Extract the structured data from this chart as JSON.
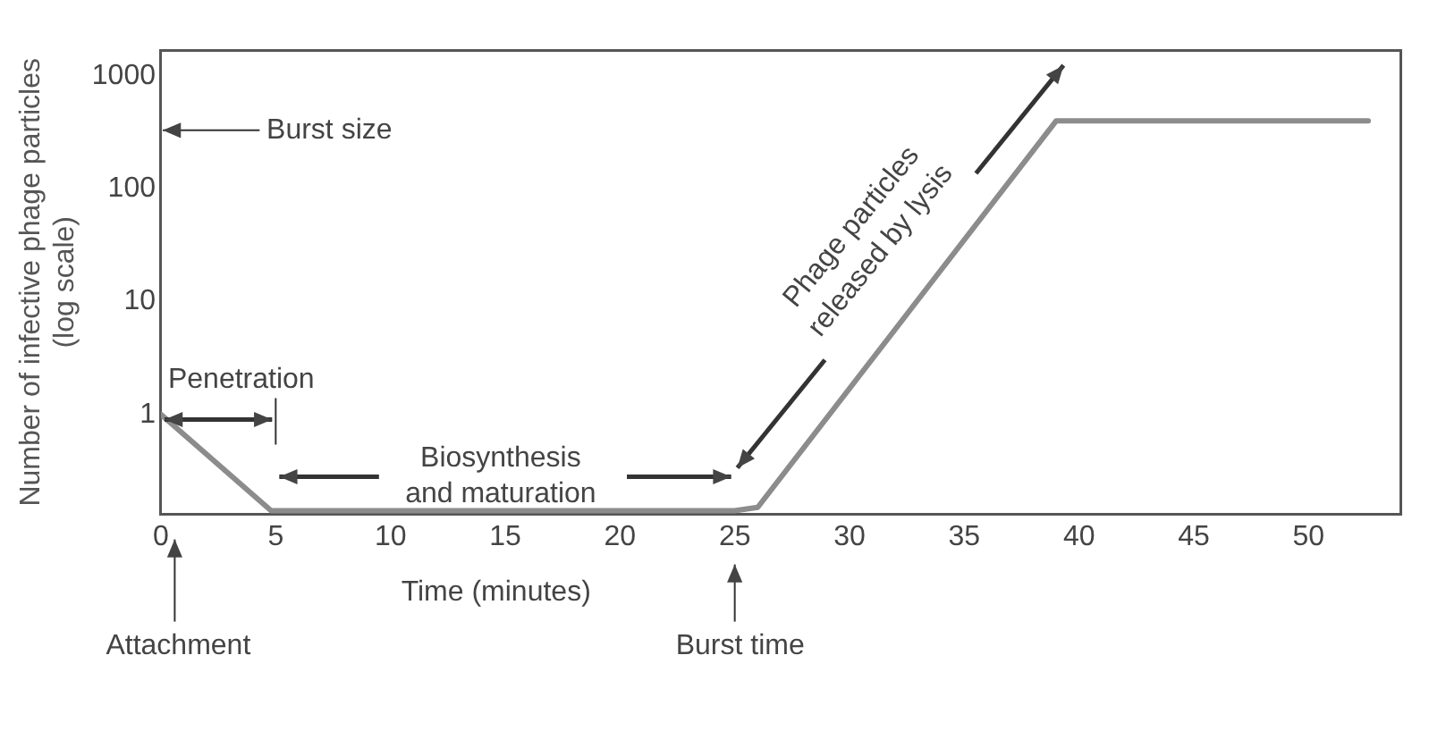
{
  "chart_data": {
    "type": "line",
    "xlabel": "Time (minutes)",
    "ylabel": "Number of infective phage particles (log scale)",
    "x": [
      0,
      4.8,
      25,
      26,
      39,
      52.6
    ],
    "series": [
      {
        "color": "#8c8c8c",
        "values": [
          1,
          0.14,
          0.14,
          0.15,
          400,
          400
        ]
      }
    ],
    "xlim": [
      0,
      54
    ],
    "xticks": [
      0,
      5,
      10,
      15,
      20,
      25,
      30,
      35,
      40,
      45,
      50
    ],
    "ylim": [
      0.13,
      1700
    ],
    "yticks": [
      1,
      10,
      100,
      1000
    ],
    "log": "y",
    "grid": false,
    "legend": false,
    "marker": "none",
    "line_style": "solid",
    "annotations": [
      "Burst size",
      "Penetration",
      "Biosynthesis and maturation",
      "Phage particles released by lysis",
      "Attachment",
      "Burst time"
    ]
  }
}
